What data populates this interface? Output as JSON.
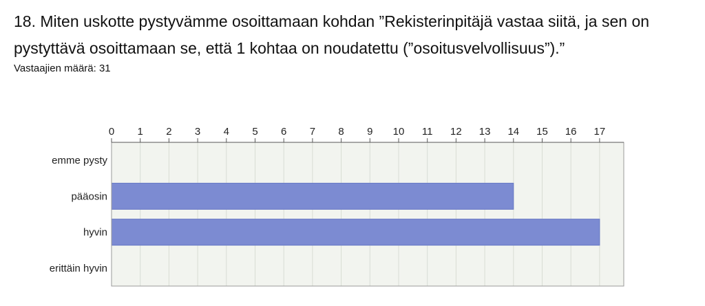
{
  "question": "18. Miten uskotte pystyvämme osoittamaan kohdan ”Rekisterinpitäjä vastaa siitä, ja sen on pystyttävä osoittamaan se, että 1 kohtaa on noudatettu (”osoitusvelvollisuus”).”",
  "respondents": "Vastaajien määrä: 31",
  "colors": {
    "bar": "#7c8bd2",
    "bar_border": "#6677c4",
    "plot_bg": "#f2f4ef",
    "grid": "#d8dcd4"
  },
  "chart_data": {
    "type": "bar",
    "orientation": "horizontal",
    "categories": [
      "emme pysty",
      "pääosin",
      "hyvin",
      "erittäin hyvin"
    ],
    "values": [
      0,
      14,
      17,
      0
    ],
    "xlim": [
      0,
      18
    ],
    "xticks": [
      0,
      1,
      2,
      3,
      4,
      5,
      6,
      7,
      8,
      9,
      10,
      11,
      12,
      13,
      14,
      15,
      16,
      17
    ],
    "x_axis_position": "top",
    "grid": true,
    "title": "",
    "xlabel": "",
    "ylabel": ""
  }
}
